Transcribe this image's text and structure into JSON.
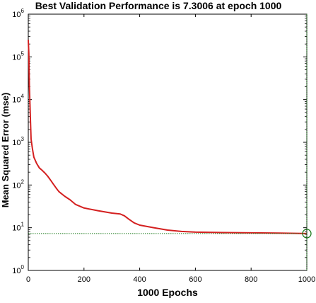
{
  "chart_data": {
    "type": "line",
    "title": "Best Validation Performance is 7.3006 at epoch 1000",
    "xlabel": "1000 Epochs",
    "ylabel": "Mean Squared Error  (mse)",
    "xlim": [
      0,
      1000
    ],
    "ylim": [
      1,
      1000000
    ],
    "yscale": "log",
    "grid": false,
    "x_ticks": [
      {
        "value": 0,
        "label": "0"
      },
      {
        "value": 200,
        "label": "200"
      },
      {
        "value": 400,
        "label": "400"
      },
      {
        "value": 600,
        "label": "600"
      },
      {
        "value": 800,
        "label": "800"
      },
      {
        "value": 1000,
        "label": "1000"
      }
    ],
    "y_ticks": [
      {
        "value": 1,
        "base": "10",
        "exp": "0"
      },
      {
        "value": 10,
        "base": "10",
        "exp": "1"
      },
      {
        "value": 100,
        "base": "10",
        "exp": "2"
      },
      {
        "value": 1000,
        "base": "10",
        "exp": "3"
      },
      {
        "value": 10000,
        "base": "10",
        "exp": "4"
      },
      {
        "value": 100000,
        "base": "10",
        "exp": "5"
      },
      {
        "value": 1000000,
        "base": "10",
        "exp": "6"
      }
    ],
    "series": [
      {
        "color": "#d42020",
        "x": [
          0,
          2,
          4,
          6,
          8,
          10,
          15,
          20,
          30,
          40,
          50,
          60,
          70,
          80,
          90,
          100,
          110,
          130,
          150,
          170,
          200,
          250,
          300,
          330,
          345,
          360,
          380,
          400,
          450,
          500,
          550,
          600,
          700,
          800,
          900,
          1000
        ],
        "y": [
          250000,
          120000,
          20000,
          8000,
          3000,
          1200,
          700,
          450,
          320,
          250,
          220,
          190,
          160,
          130,
          105,
          85,
          70,
          55,
          45,
          35,
          29,
          25,
          22,
          21,
          19,
          16,
          13,
          11.5,
          10,
          8.8,
          8.2,
          7.9,
          7.7,
          7.6,
          7.5,
          7.3
        ]
      }
    ],
    "best": {
      "epoch": 1000,
      "value": 7.3006,
      "color": "#1a7a1a",
      "marker": "circle"
    }
  }
}
